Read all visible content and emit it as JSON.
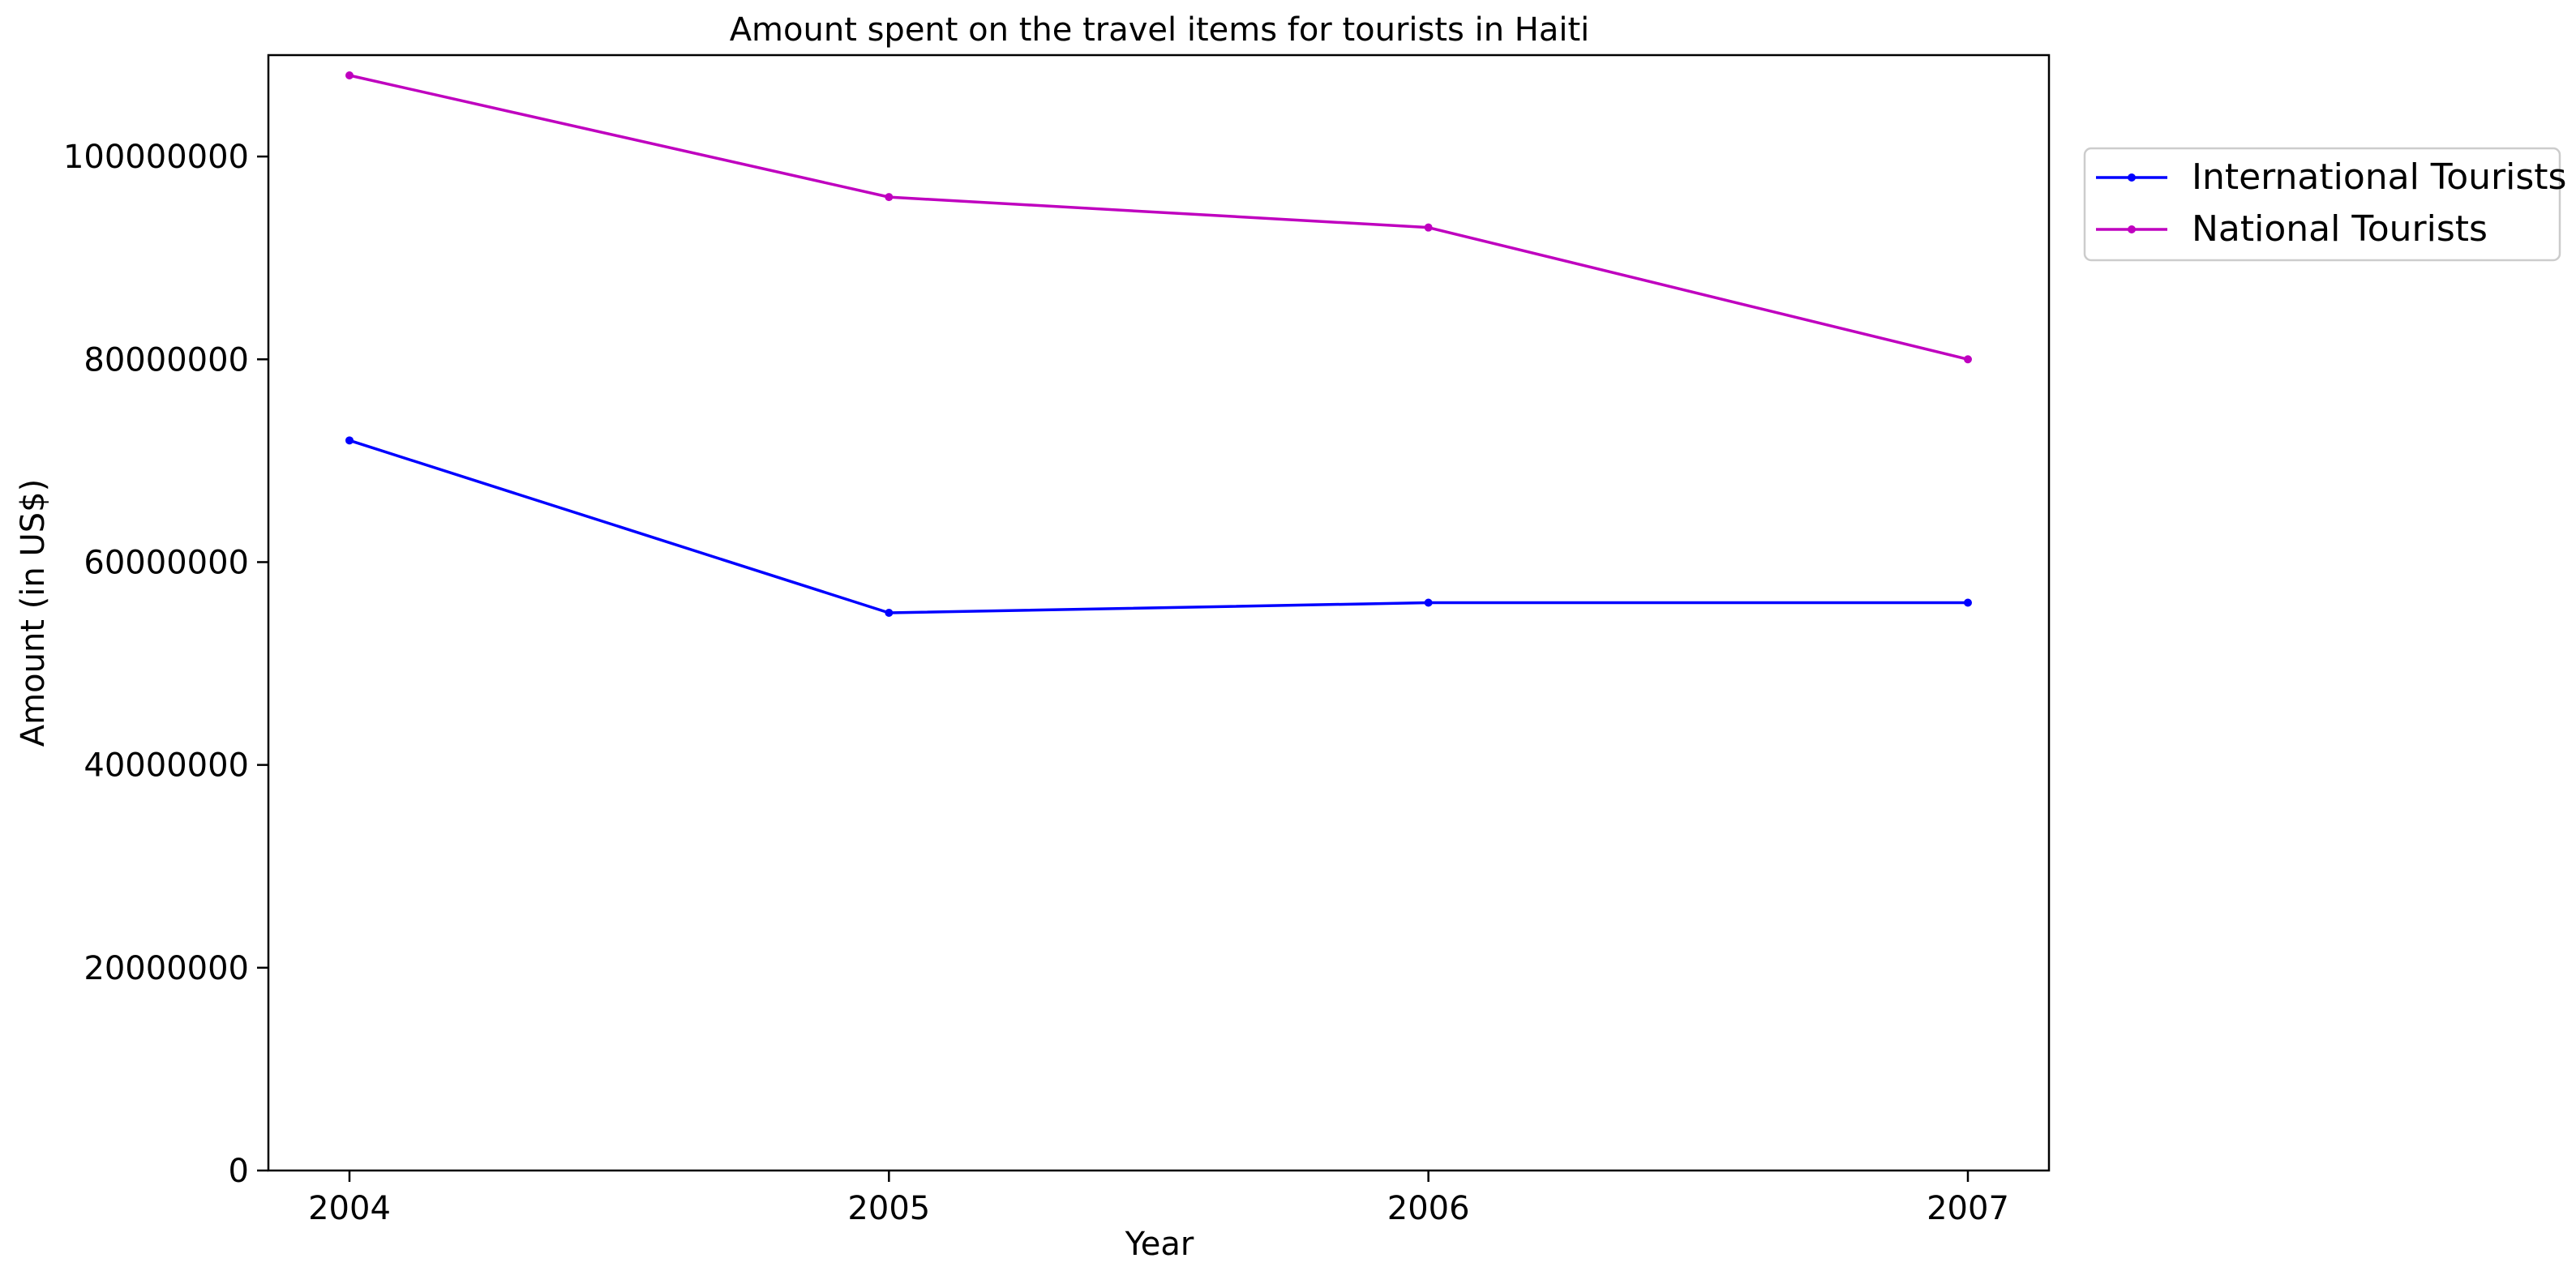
{
  "chart_data": {
    "type": "line",
    "title": "Amount spent on the travel items for tourists in Haiti",
    "xlabel": "Year",
    "ylabel": "Amount (in US$)",
    "x": [
      "2004",
      "2005",
      "2006",
      "2007"
    ],
    "ylim": [
      0,
      110000000
    ],
    "yticks": [
      0,
      20000000,
      40000000,
      60000000,
      80000000,
      100000000
    ],
    "ytick_labels": [
      "0",
      "20000000",
      "40000000",
      "60000000",
      "80000000",
      "100000000"
    ],
    "grid": false,
    "legend_position": "outside-right-top",
    "series": [
      {
        "name": "International Tourists",
        "color": "#0000ff",
        "marker": "circle",
        "values": [
          72000000,
          55000000,
          56000000,
          56000000
        ]
      },
      {
        "name": "National Tourists",
        "color": "#bf00bf",
        "marker": "circle",
        "values": [
          108000000,
          96000000,
          93000000,
          80000000
        ]
      }
    ]
  }
}
